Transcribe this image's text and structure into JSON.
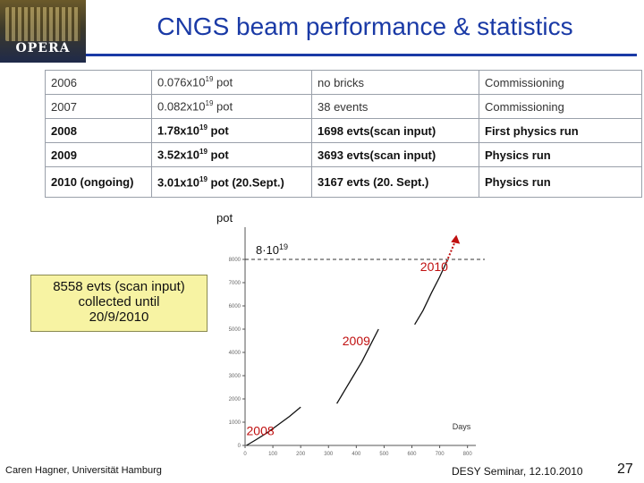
{
  "header": {
    "logo_text": "OPERA",
    "title": "CNGS beam performance & statistics"
  },
  "table": {
    "rows": [
      {
        "year": "2006",
        "pot_base": "0.076x10",
        "pot_exp": "19",
        "pot_tail": " pot",
        "events": "no bricks",
        "status": "Commissioning"
      },
      {
        "year": "2007",
        "pot_base": "0.082x10",
        "pot_exp": "19",
        "pot_tail": " pot",
        "events": "38 events",
        "status": "Commissioning"
      },
      {
        "year": "2008",
        "pot_base": "1.78x10",
        "pot_exp": "19",
        "pot_tail": " pot",
        "events": "1698 evts(scan input)",
        "status": "First physics run"
      },
      {
        "year": "2009",
        "pot_base": "3.52x10",
        "pot_exp": "19",
        "pot_tail": " pot",
        "events": "3693 evts(scan input)",
        "status": "Physics  run"
      },
      {
        "year": "2010 (ongoing)",
        "pot_base": "3.01x10",
        "pot_exp": "19",
        "pot_tail": " pot (20.Sept.)",
        "events": "3167 evts (20. Sept.)",
        "status": "Physics  run"
      }
    ]
  },
  "callout": {
    "line1": "8558 evts (scan input)",
    "line2": "collected until",
    "line3": "20/9/2010"
  },
  "chart_data": {
    "type": "line",
    "ylabel": "pot",
    "xlabel": "Days",
    "y_tick_labels": [
      "0",
      "1000",
      "2000",
      "3000",
      "4000",
      "5000",
      "6000",
      "7000",
      "8000"
    ],
    "x_tick_labels": [
      "0",
      "100",
      "200",
      "300",
      "400",
      "500",
      "600",
      "700",
      "800"
    ],
    "reference_line": {
      "value": 8000,
      "label_base": "8·10",
      "label_exp": "19"
    },
    "year_labels": [
      "2008",
      "2009",
      "2010"
    ],
    "series": [
      {
        "name": "2008",
        "x": [
          5,
          40,
          80,
          120,
          160,
          200
        ],
        "y": [
          0,
          250,
          550,
          900,
          1250,
          1650
        ]
      },
      {
        "name": "2009",
        "x": [
          330,
          360,
          390,
          420,
          450,
          480
        ],
        "y": [
          1800,
          2400,
          3000,
          3600,
          4300,
          5000
        ]
      },
      {
        "name": "2010",
        "x": [
          610,
          640,
          670,
          700,
          725
        ],
        "y": [
          5200,
          5800,
          6550,
          7250,
          7900
        ]
      },
      {
        "name": "2010 projection",
        "x": [
          725,
          760
        ],
        "y": [
          7900,
          8900
        ]
      }
    ],
    "xlim": [
      0,
      830
    ],
    "ylim": [
      0,
      9000
    ]
  },
  "footer": {
    "author": "Caren Hagner, Universität Hamburg",
    "venue": "DESY Seminar, 12.10.2010",
    "page": "27"
  },
  "colors": {
    "title": "#1a3aa6",
    "accent": "#c01010",
    "callout_bg": "#f7f3a3"
  }
}
